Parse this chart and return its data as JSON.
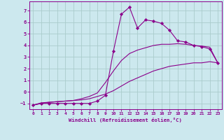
{
  "xlabel": "Windchill (Refroidissement éolien,°C)",
  "bg_color": "#cce8ee",
  "grid_color": "#aacccc",
  "line_color": "#8b008b",
  "marker_color": "#8b008b",
  "xlim": [
    -0.5,
    23.5
  ],
  "ylim": [
    -1.5,
    7.8
  ],
  "xticks": [
    0,
    1,
    2,
    3,
    4,
    5,
    6,
    7,
    8,
    9,
    10,
    11,
    12,
    13,
    14,
    15,
    16,
    17,
    18,
    19,
    20,
    21,
    22,
    23
  ],
  "yticks": [
    -1,
    0,
    1,
    2,
    3,
    4,
    5,
    6,
    7
  ],
  "series": [
    {
      "x": [
        0,
        1,
        2,
        3,
        4,
        5,
        6,
        7,
        8,
        9,
        10,
        11,
        12,
        13,
        14,
        15,
        16,
        17,
        18,
        19,
        20,
        21,
        22,
        23
      ],
      "y": [
        -1.15,
        -1.0,
        -1.0,
        -1.0,
        -1.0,
        -1.0,
        -1.0,
        -1.0,
        -0.8,
        -0.3,
        3.5,
        6.7,
        7.3,
        5.5,
        6.2,
        6.1,
        5.9,
        5.3,
        4.4,
        4.3,
        4.0,
        3.9,
        3.7,
        2.5
      ],
      "markers": true
    },
    {
      "x": [
        0,
        1,
        2,
        3,
        4,
        5,
        6,
        7,
        8,
        9,
        10,
        11,
        12,
        13,
        14,
        15,
        16,
        17,
        18,
        19,
        20,
        21,
        22,
        23
      ],
      "y": [
        -1.15,
        -1.0,
        -0.9,
        -0.85,
        -0.8,
        -0.75,
        -0.7,
        -0.6,
        -0.4,
        -0.2,
        0.1,
        0.5,
        0.9,
        1.2,
        1.5,
        1.8,
        2.0,
        2.2,
        2.3,
        2.4,
        2.5,
        2.5,
        2.6,
        2.5
      ],
      "markers": false
    },
    {
      "x": [
        0,
        1,
        2,
        3,
        4,
        5,
        6,
        7,
        8,
        9,
        10,
        11,
        12,
        13,
        14,
        15,
        16,
        17,
        18,
        19,
        20,
        21,
        22,
        23
      ],
      "y": [
        -1.15,
        -0.95,
        -0.9,
        -0.85,
        -0.8,
        -0.75,
        -0.6,
        -0.4,
        -0.1,
        0.8,
        1.8,
        2.7,
        3.3,
        3.6,
        3.8,
        4.0,
        4.1,
        4.1,
        4.15,
        4.1,
        4.0,
        3.95,
        3.85,
        2.5
      ],
      "markers": false
    }
  ]
}
